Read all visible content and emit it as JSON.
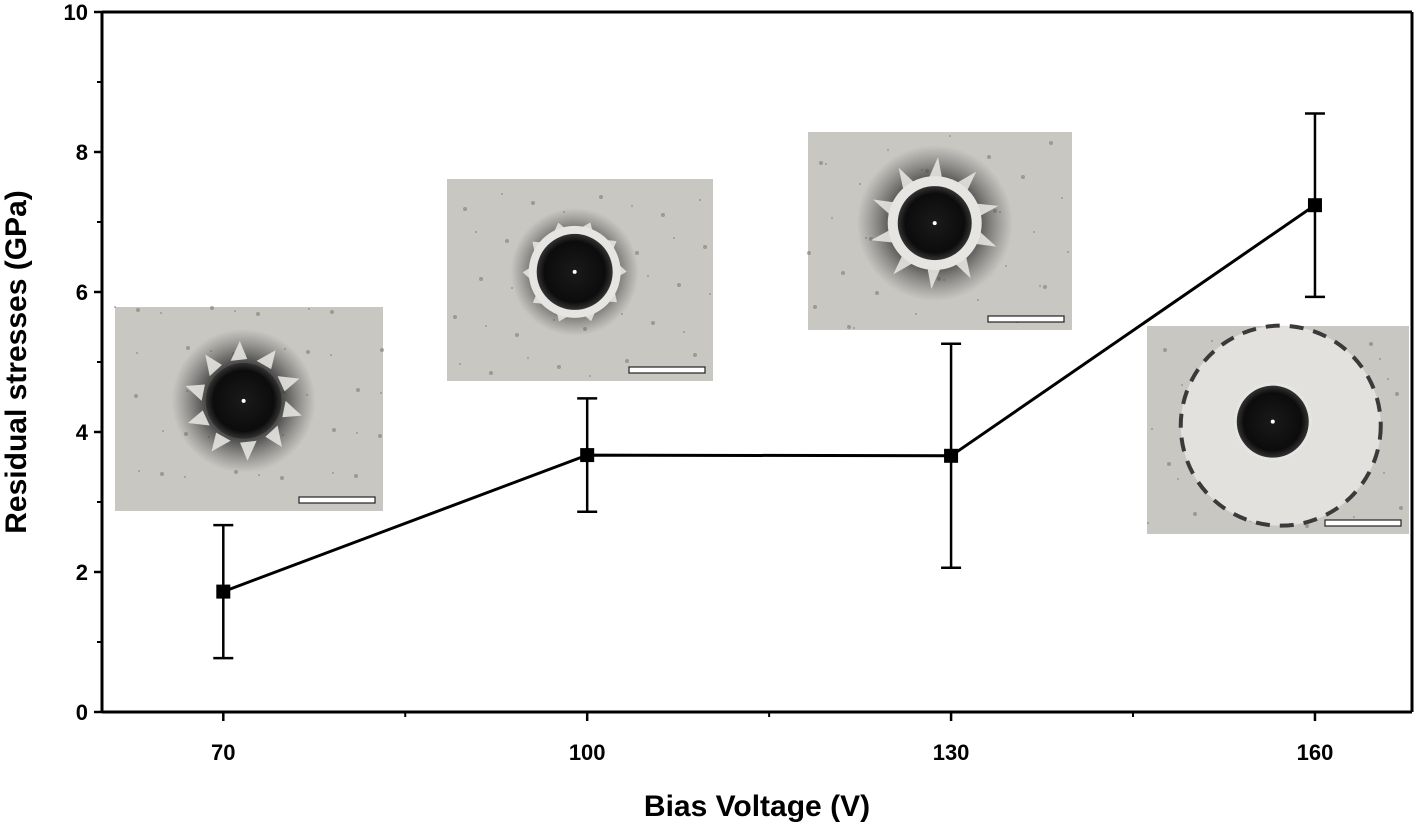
{
  "chart_data": {
    "type": "line",
    "title": "",
    "xlabel": "Bias Voltage (V)",
    "ylabel": "Residual stresses (GPa)",
    "xlim": [
      60,
      168
    ],
    "ylim": [
      0,
      10
    ],
    "x_ticks": [
      70,
      100,
      130,
      160
    ],
    "y_ticks": [
      0,
      2,
      4,
      6,
      8,
      10
    ],
    "grid": false,
    "legend": "none",
    "line_color": "#000000",
    "marker": "square",
    "series": [
      {
        "x": [
          70,
          100,
          130,
          160
        ],
        "y": [
          1.72,
          3.67,
          3.66,
          7.24
        ],
        "error": [
          0.95,
          0.81,
          1.6,
          1.31
        ]
      }
    ],
    "annotations": [
      {
        "type": "micrograph-inset",
        "near_x": 70,
        "description": "indentation crater with radial delamination"
      },
      {
        "type": "micrograph-inset",
        "near_x": 100,
        "description": "indentation crater with radial delamination"
      },
      {
        "type": "micrograph-inset",
        "near_x": 130,
        "description": "indentation crater with radial delamination"
      },
      {
        "type": "micrograph-inset",
        "near_x": 160,
        "description": "indentation crater with wide circular delamination"
      }
    ]
  }
}
